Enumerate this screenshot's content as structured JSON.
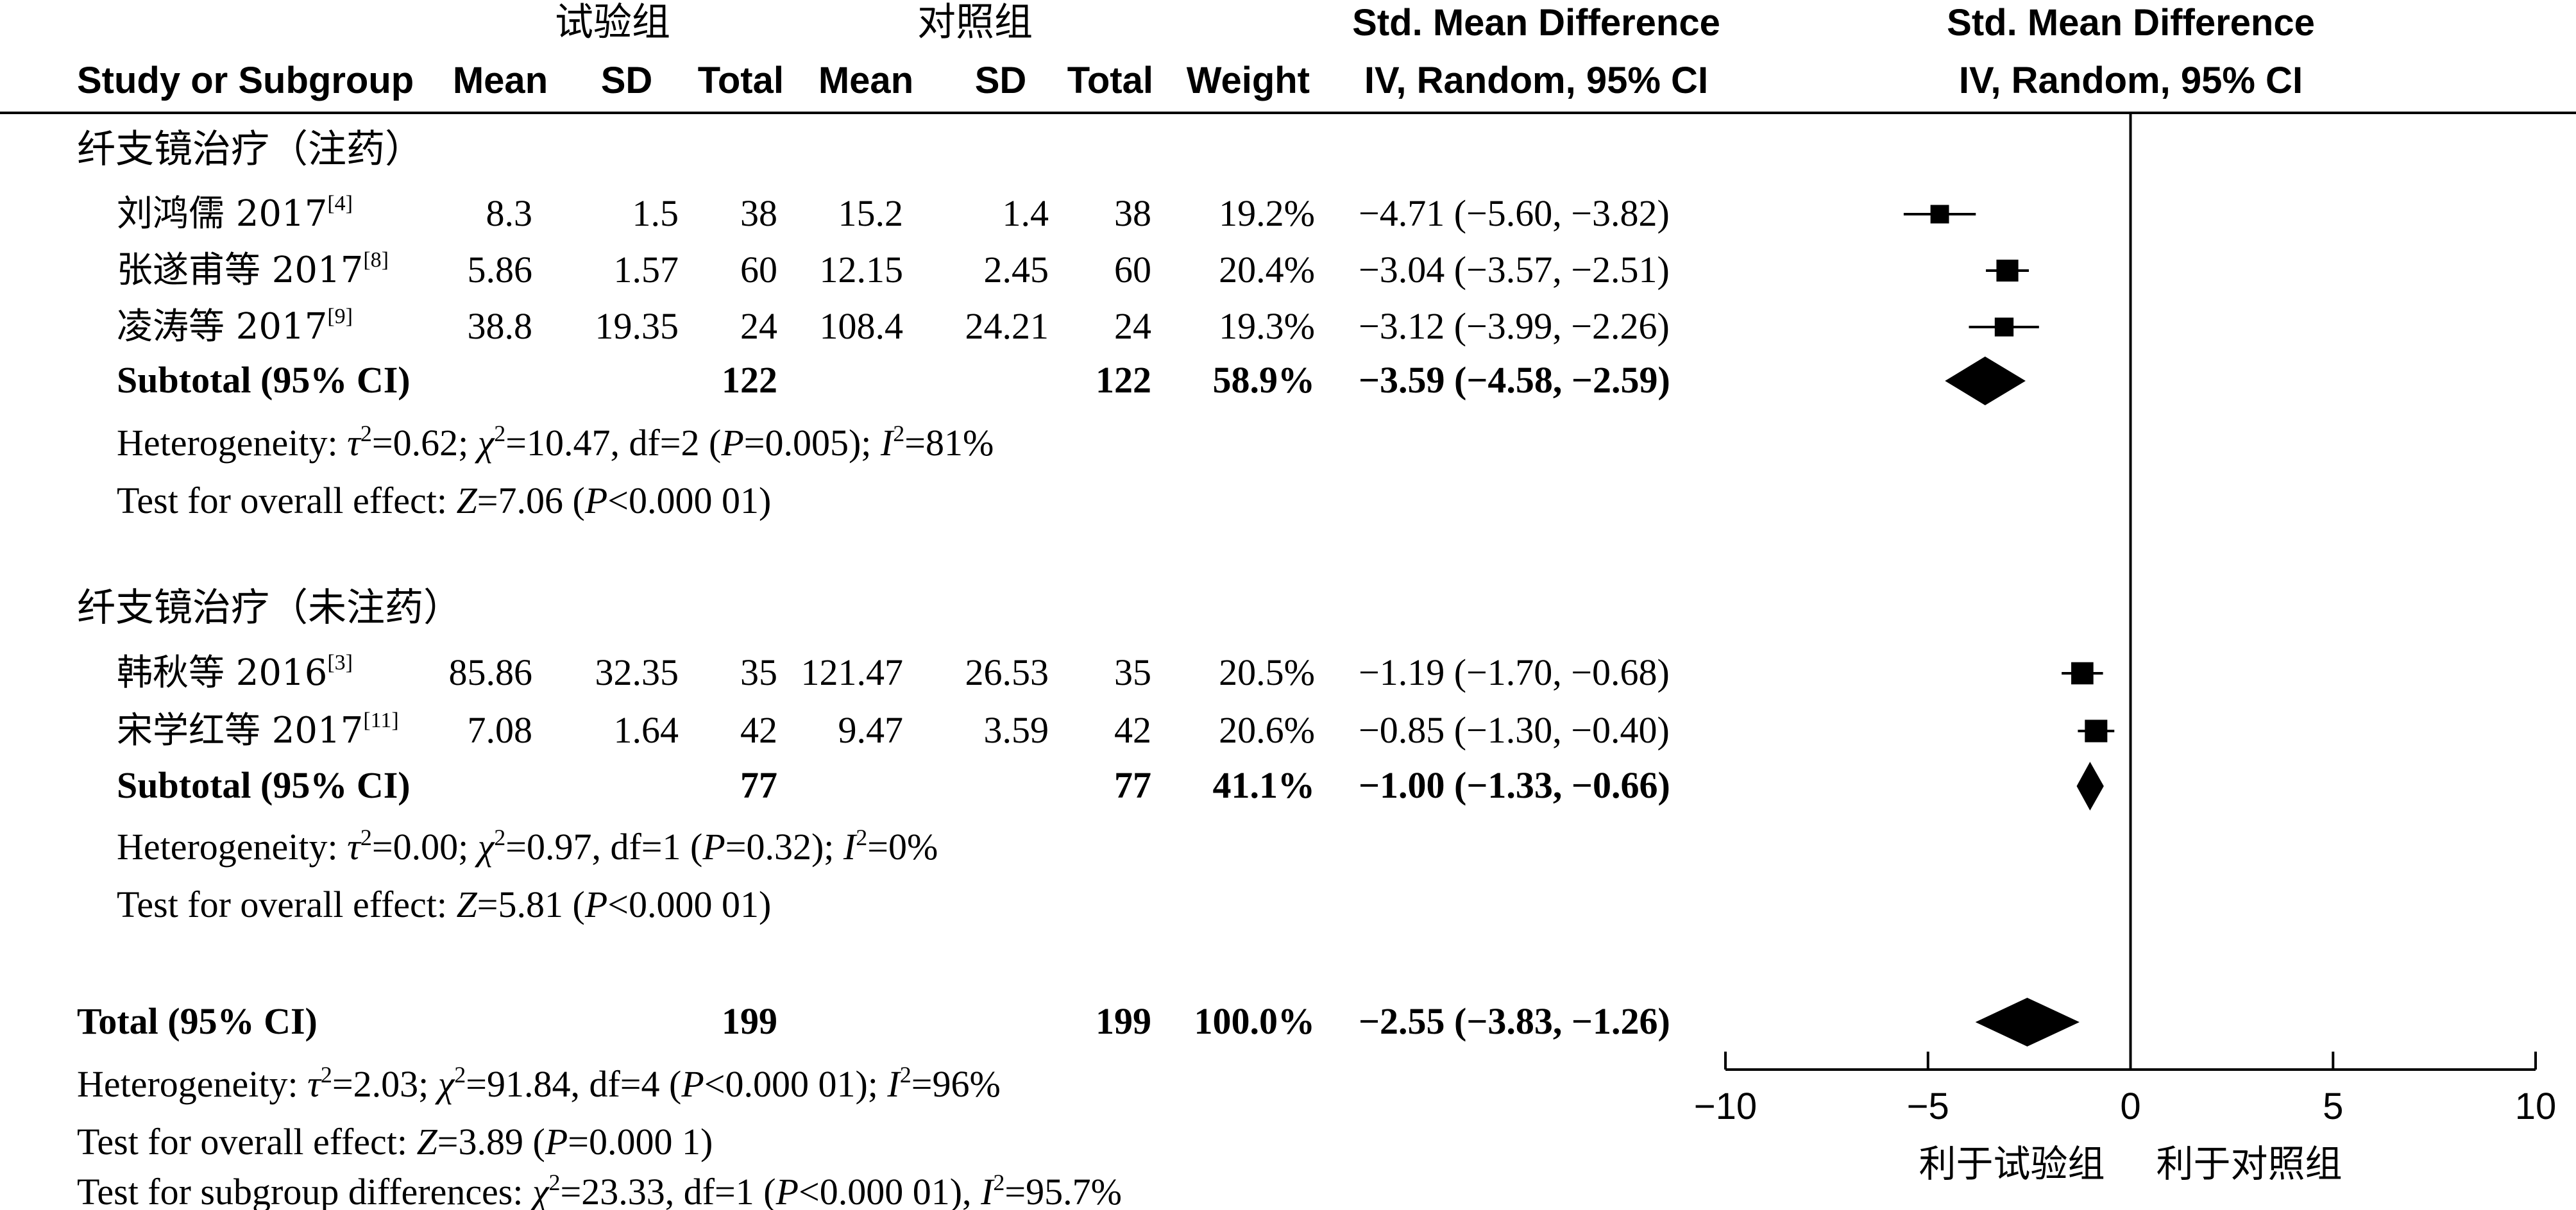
{
  "header": {
    "group_exp": "试验组",
    "group_ctrl": "对照组",
    "smd_title": "Std. Mean Difference",
    "col_study": "Study or Subgroup",
    "col_mean": "Mean",
    "col_sd": "SD",
    "col_total": "Total",
    "col_weight": "Weight",
    "col_ci": "IV, Random, 95% CI",
    "plot_title": "Std. Mean Difference",
    "plot_ci": "IV, Random, 95% CI"
  },
  "chart_data": {
    "type": "forest",
    "effect_measure": "Std. Mean Difference, IV, Random, 95% CI",
    "xlim": [
      -10,
      10
    ],
    "xticks": [
      "−10",
      "−5",
      "0",
      "5",
      "10"
    ],
    "xtick_values": [
      -10,
      -5,
      0,
      5,
      10
    ],
    "favours_left": "利于试验组",
    "favours_right": "利于对照组",
    "subgroups": [
      {
        "name": "纤支镜治疗（注药）",
        "studies": [
          {
            "name": "刘鸿儒 2017",
            "ref": "[4]",
            "exp_mean": "8.3",
            "exp_sd": "1.5",
            "exp_total": "38",
            "ctrl_mean": "15.2",
            "ctrl_sd": "1.4",
            "ctrl_total": "38",
            "weight": "19.2%",
            "ci_text": "−4.71 (−5.60, −3.82)",
            "est": -4.71,
            "lo": -5.6,
            "hi": -3.82,
            "w": 19.2
          },
          {
            "name": "张遂甫等 2017",
            "ref": "[8]",
            "exp_mean": "5.86",
            "exp_sd": "1.57",
            "exp_total": "60",
            "ctrl_mean": "12.15",
            "ctrl_sd": "2.45",
            "ctrl_total": "60",
            "weight": "20.4%",
            "ci_text": "−3.04 (−3.57, −2.51)",
            "est": -3.04,
            "lo": -3.57,
            "hi": -2.51,
            "w": 20.4
          },
          {
            "name": "凌涛等 2017",
            "ref": "[9]",
            "exp_mean": "38.8",
            "exp_sd": "19.35",
            "exp_total": "24",
            "ctrl_mean": "108.4",
            "ctrl_sd": "24.21",
            "ctrl_total": "24",
            "weight": "19.3%",
            "ci_text": "−3.12 (−3.99, −2.26)",
            "est": -3.12,
            "lo": -3.99,
            "hi": -2.26,
            "w": 19.3
          }
        ],
        "subtotal": {
          "label": "Subtotal (95% CI)",
          "exp_total": "122",
          "ctrl_total": "122",
          "weight": "58.9%",
          "ci_text": "−3.59 (−4.58, −2.59)",
          "est": -3.59,
          "lo": -4.58,
          "hi": -2.59
        },
        "heterogeneity": {
          "label": "Heterogeneity: ",
          "tau": "=0.62; ",
          "chi": "=10.47, df=2 (",
          "p": "=0.005); ",
          "i": "=81%"
        },
        "overall": {
          "label": "Test for overall effect: ",
          "z": "=7.06 (",
          "p": "<0.000 01)"
        }
      },
      {
        "name": "纤支镜治疗（未注药）",
        "studies": [
          {
            "name": "韩秋等 2016",
            "ref": "[3]",
            "exp_mean": "85.86",
            "exp_sd": "32.35",
            "exp_total": "35",
            "ctrl_mean": "121.47",
            "ctrl_sd": "26.53",
            "ctrl_total": "35",
            "weight": "20.5%",
            "ci_text": "−1.19 (−1.70, −0.68)",
            "est": -1.19,
            "lo": -1.7,
            "hi": -0.68,
            "w": 20.5
          },
          {
            "name": "宋学红等 2017",
            "ref": "[11]",
            "exp_mean": "7.08",
            "exp_sd": "1.64",
            "exp_total": "42",
            "ctrl_mean": "9.47",
            "ctrl_sd": "3.59",
            "ctrl_total": "42",
            "weight": "20.6%",
            "ci_text": "−0.85 (−1.30, −0.40)",
            "est": -0.85,
            "lo": -1.3,
            "hi": -0.4,
            "w": 20.6
          }
        ],
        "subtotal": {
          "label": "Subtotal (95% CI)",
          "exp_total": "77",
          "ctrl_total": "77",
          "weight": "41.1%",
          "ci_text": "−1.00 (−1.33, −0.66)",
          "est": -1.0,
          "lo": -1.33,
          "hi": -0.66
        },
        "heterogeneity": {
          "label": "Heterogeneity: ",
          "tau": "=0.00; ",
          "chi": "=0.97, df=1 (",
          "p": "=0.32); ",
          "i": "=0%"
        },
        "overall": {
          "label": "Test for overall effect: ",
          "z": "=5.81 (",
          "p": "<0.000 01)"
        }
      }
    ],
    "total": {
      "label": "Total (95% CI)",
      "exp_total": "199",
      "ctrl_total": "199",
      "weight": "100.0%",
      "ci_text": "−2.55 (−3.83, −1.26)",
      "est": -2.55,
      "lo": -3.83,
      "hi": -1.26
    },
    "total_heterogeneity": {
      "label": "Heterogeneity: ",
      "tau": "=2.03; ",
      "chi": "=91.84, df=4 (",
      "p": "<0.000 01); ",
      "i": "=96%"
    },
    "total_overall": {
      "label": "Test for overall effect: ",
      "z": "=3.89 (",
      "p": "=0.000 1)"
    },
    "subgroup_diff": {
      "label": "Test for subgroup differences: ",
      "chi": "=23.33, df=1 (",
      "p": "<0.000 01), ",
      "i": "=95.7%"
    }
  }
}
